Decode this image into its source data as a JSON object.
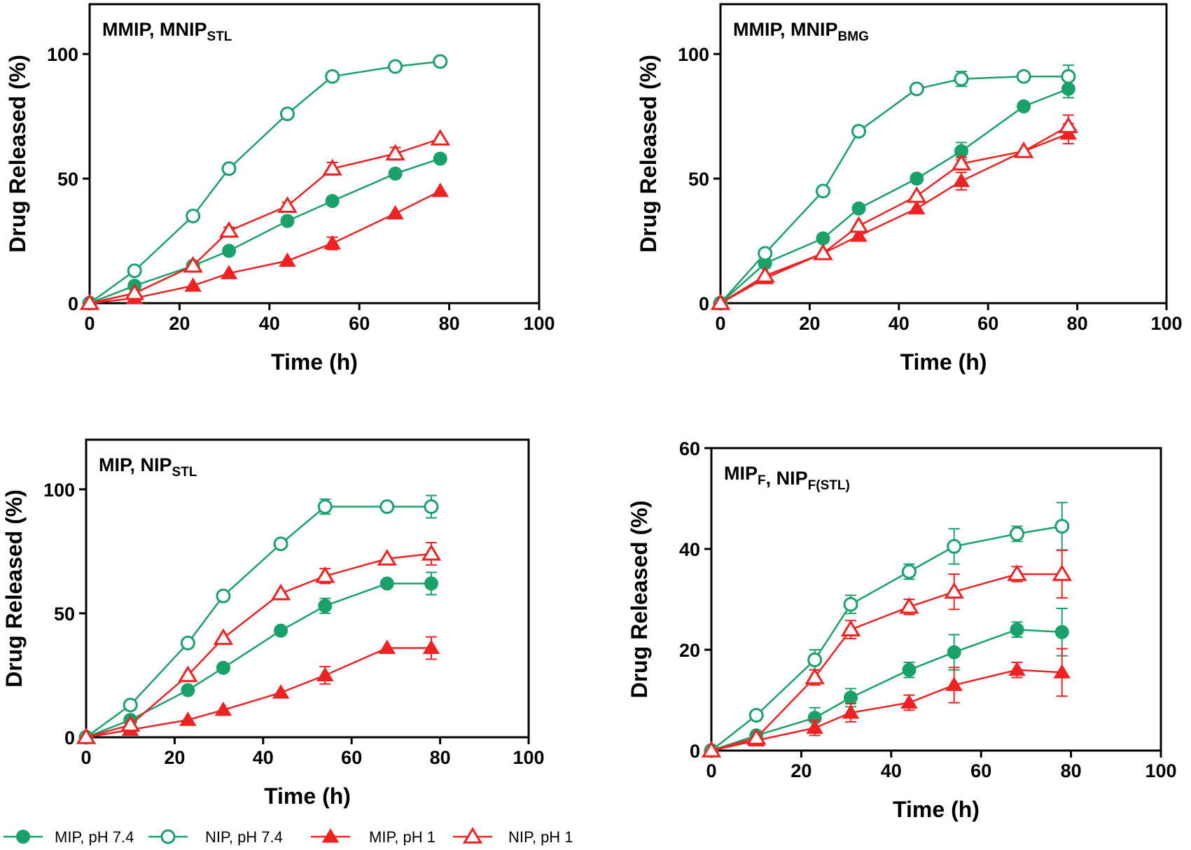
{
  "colors": {
    "green": "#1aa169",
    "red": "#ee2222"
  },
  "legend": [
    {
      "label": "MIP, pH 7.4",
      "marker": "filled-circle",
      "color": "#1aa169"
    },
    {
      "label": "NIP, pH 7.4",
      "marker": "open-circle",
      "color": "#1aa169"
    },
    {
      "label": "MIP, pH 1",
      "marker": "filled-triangle",
      "color": "#ee2222"
    },
    {
      "label": "NIP, pH 1",
      "marker": "open-triangle",
      "color": "#ee2222"
    }
  ],
  "chart_data": [
    {
      "type": "line",
      "title_main": "MMIP, MNIP",
      "title_sub": "STL",
      "xlabel": "Time (h)",
      "ylabel": "Drug Released (%)",
      "xlim": [
        0,
        100
      ],
      "ylim": [
        0,
        120
      ],
      "xticks": [
        0,
        20,
        40,
        60,
        80,
        100
      ],
      "yticks": [
        0,
        50,
        100
      ],
      "x": [
        0,
        10,
        23,
        31,
        44,
        54,
        68,
        78
      ],
      "series": [
        {
          "name": "MIP, pH 7.4",
          "values": [
            0,
            7,
            15,
            21,
            33,
            41,
            52,
            58
          ],
          "err": [
            0,
            0.5,
            0.5,
            0.5,
            0.5,
            0.5,
            0.5,
            0.5
          ]
        },
        {
          "name": "NIP, pH 7.4",
          "values": [
            0,
            13,
            35,
            54,
            76,
            91,
            95,
            97
          ],
          "err": [
            0,
            0.5,
            0.5,
            0.5,
            0.5,
            0.5,
            0.5,
            0.5
          ]
        },
        {
          "name": "MIP, pH 1",
          "values": [
            0,
            2,
            7,
            12,
            17,
            24,
            36,
            45
          ],
          "err": [
            0,
            0.5,
            0.5,
            0.5,
            0.5,
            2.5,
            0.5,
            0.5
          ]
        },
        {
          "name": "NIP, pH 1",
          "values": [
            0,
            4,
            15,
            29,
            39,
            54,
            60,
            66
          ],
          "err": [
            0,
            0.5,
            0.5,
            1.5,
            1.5,
            2.5,
            2.5,
            0.5
          ]
        }
      ]
    },
    {
      "type": "line",
      "title_main": "MMIP, MNIP",
      "title_sub": "BMG",
      "xlabel": "Time (h)",
      "ylabel": "Drug Released (%)",
      "xlim": [
        0,
        100
      ],
      "ylim": [
        0,
        120
      ],
      "xticks": [
        0,
        20,
        40,
        60,
        80,
        100
      ],
      "yticks": [
        0,
        50,
        100
      ],
      "x": [
        0,
        10,
        23,
        31,
        44,
        54,
        68,
        78
      ],
      "series": [
        {
          "name": "MIP, pH 7.4",
          "values": [
            0,
            16,
            26,
            38,
            50,
            61,
            79,
            86
          ],
          "err": [
            0,
            0.5,
            0.5,
            0.5,
            0.5,
            3.5,
            0.5,
            3.5
          ]
        },
        {
          "name": "NIP, pH 7.4",
          "values": [
            0,
            20,
            45,
            69,
            86,
            90,
            91,
            91
          ],
          "err": [
            0,
            0.5,
            0.5,
            0.5,
            0.5,
            3,
            0.5,
            4.5
          ]
        },
        {
          "name": "MIP, pH 1",
          "values": [
            0,
            10,
            20,
            27,
            38,
            49,
            61,
            68
          ],
          "err": [
            0,
            0.5,
            0.5,
            0.5,
            0.5,
            3.5,
            0.5,
            4
          ]
        },
        {
          "name": "NIP, pH 1",
          "values": [
            0,
            11,
            20,
            31,
            43,
            56,
            61,
            71
          ],
          "err": [
            0,
            0.5,
            0.5,
            0.5,
            0.5,
            2.5,
            0.5,
            4.5
          ]
        }
      ]
    },
    {
      "type": "line",
      "title_main": "MIP, NIP",
      "title_sub": "STL",
      "xlabel": "Time (h)",
      "ylabel": "Drug Released (%)",
      "xlim": [
        0,
        100
      ],
      "ylim": [
        0,
        120
      ],
      "xticks": [
        0,
        20,
        40,
        60,
        80,
        100
      ],
      "yticks": [
        0,
        50,
        100
      ],
      "x": [
        0,
        10,
        23,
        31,
        44,
        54,
        68,
        78
      ],
      "series": [
        {
          "name": "MIP, pH 7.4",
          "values": [
            0,
            7,
            19,
            28,
            43,
            53,
            62,
            62
          ],
          "err": [
            0,
            0.5,
            0.5,
            0.5,
            0.5,
            3,
            0.5,
            4.5
          ]
        },
        {
          "name": "NIP, pH 7.4",
          "values": [
            0,
            13,
            38,
            57,
            78,
            93,
            93,
            93
          ],
          "err": [
            0,
            0.5,
            0.5,
            0.5,
            0.5,
            3,
            0.5,
            4.5
          ]
        },
        {
          "name": "MIP, pH 1",
          "values": [
            0,
            3,
            7,
            11,
            18,
            25,
            36,
            36
          ],
          "err": [
            0,
            0.5,
            0.5,
            0.5,
            0.5,
            3.5,
            0.5,
            4.5
          ]
        },
        {
          "name": "NIP, pH 1",
          "values": [
            0,
            5,
            25,
            40,
            58,
            65,
            72,
            74
          ],
          "err": [
            0,
            0.5,
            0.5,
            0.5,
            0.5,
            3,
            0.5,
            4.5
          ]
        }
      ]
    },
    {
      "type": "line",
      "title_main": "MIP",
      "title_main_sub": "F",
      "title_main2": ", NIP",
      "title_sub": "F(STL)",
      "xlabel": "Time (h)",
      "ylabel": "Drug Released (%)",
      "xlim": [
        0,
        100
      ],
      "ylim": [
        0,
        60
      ],
      "xticks": [
        0,
        20,
        40,
        60,
        80,
        100
      ],
      "yticks": [
        0,
        20,
        40,
        60
      ],
      "x": [
        0,
        10,
        23,
        31,
        44,
        54,
        68,
        78
      ],
      "series": [
        {
          "name": "MIP, pH 7.4",
          "values": [
            0,
            3,
            6.5,
            10.5,
            16,
            19.5,
            24,
            23.5
          ],
          "err": [
            0,
            0.5,
            2,
            1.8,
            1.5,
            3.5,
            1.5,
            4.7
          ]
        },
        {
          "name": "NIP, pH 7.4",
          "values": [
            0,
            7,
            18,
            29,
            35.5,
            40.5,
            43,
            44.5
          ],
          "err": [
            0,
            0.5,
            2,
            1.8,
            1.5,
            3.5,
            1.5,
            4.7
          ]
        },
        {
          "name": "MIP, pH 1",
          "values": [
            0,
            2,
            4.5,
            7.5,
            9.5,
            13,
            16,
            15.5
          ],
          "err": [
            0,
            0.5,
            1.5,
            1.8,
            1.5,
            3.5,
            1.5,
            4.7
          ]
        },
        {
          "name": "NIP, pH 1",
          "values": [
            0,
            2.5,
            14.5,
            24,
            28.5,
            31.5,
            35,
            35
          ],
          "err": [
            0,
            0.5,
            1.5,
            1.8,
            1.5,
            3.5,
            1.5,
            4.7
          ]
        }
      ]
    }
  ]
}
